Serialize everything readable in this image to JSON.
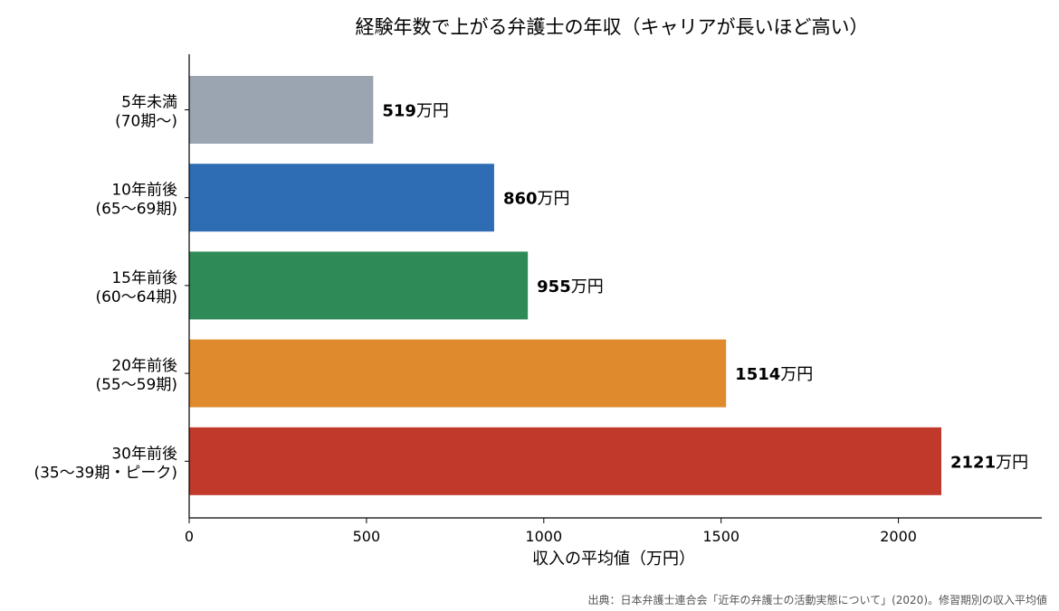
{
  "chart_data": {
    "type": "bar",
    "orientation": "horizontal",
    "title": "経験年数で上がる弁護士の年収（キャリアが長いほど高い）",
    "xlabel": "収入の平均値（万円）",
    "ylabel": "",
    "xlim": [
      0,
      2400
    ],
    "xticks": [
      0,
      500,
      1000,
      1500,
      2000
    ],
    "value_unit": "万円",
    "grid": false,
    "categories": [
      {
        "line1": "5年未満",
        "line2": "(70期〜)"
      },
      {
        "line1": "10年前後",
        "line2": "(65〜69期)"
      },
      {
        "line1": "15年前後",
        "line2": "(60〜64期)"
      },
      {
        "line1": "20年前後",
        "line2": "(55〜59期)"
      },
      {
        "line1": "30年前後",
        "line2": "(35〜39期・ピーク)"
      }
    ],
    "values": [
      519,
      860,
      955,
      1514,
      2121
    ],
    "colors": [
      "#9aa5b1",
      "#2e6db4",
      "#2e8b57",
      "#e08a2e",
      "#c0392b"
    ],
    "source": "出典：日本弁護士連合会「近年の弁護士の活動実態について」(2020)。修習期別の収入平均値"
  }
}
